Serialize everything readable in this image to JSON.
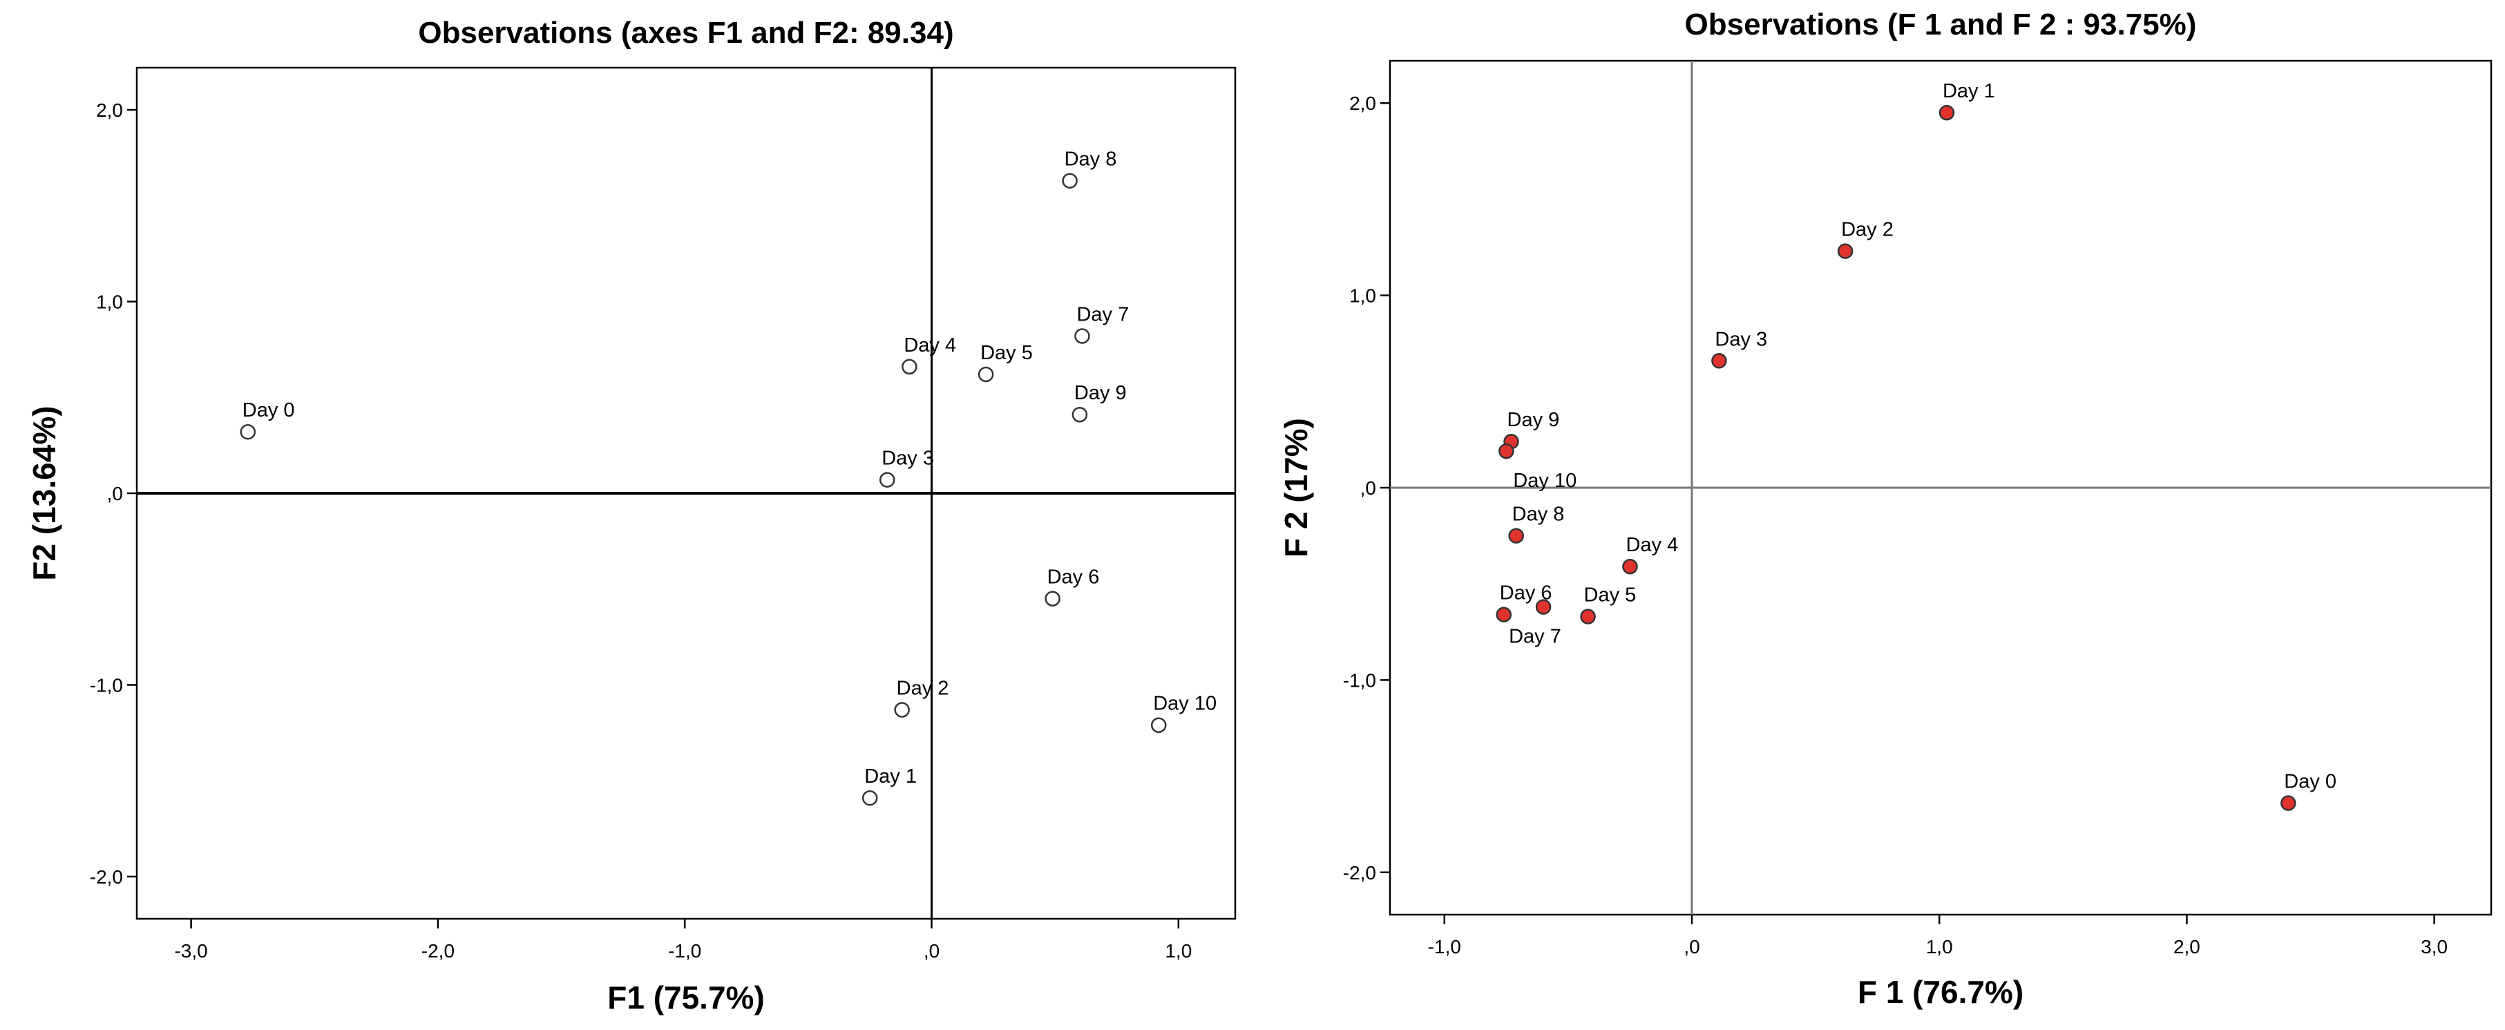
{
  "chart_data": [
    {
      "type": "scatter",
      "title": "Observations (axes F1 and F2: 89.34)",
      "xlabel": "F1 (75.7%)",
      "ylabel": "F2 (13.64%)",
      "xlim": [
        -3.22,
        1.23
      ],
      "ylim": [
        -2.22,
        2.22
      ],
      "xticks": [
        {
          "value": -3,
          "label": "-3,0"
        },
        {
          "value": -2,
          "label": "-2,0"
        },
        {
          "value": -1,
          "label": "-1,0"
        },
        {
          "value": 0,
          "label": ",0"
        },
        {
          "value": 1,
          "label": "1,0"
        }
      ],
      "yticks": [
        {
          "value": 2,
          "label": "2,0"
        },
        {
          "value": 1,
          "label": "1,0"
        },
        {
          "value": 0,
          "label": ",0"
        },
        {
          "value": -1,
          "label": "-1,0"
        },
        {
          "value": -2,
          "label": "-2,0"
        }
      ],
      "marker_fill": "#ffffff",
      "marker_stroke": "#333333",
      "refline_color": "#000000",
      "grid": false,
      "points": [
        {
          "label": "Day 0",
          "x": -2.77,
          "y": 0.32
        },
        {
          "label": "Day 1",
          "x": -0.25,
          "y": -1.59
        },
        {
          "label": "Day 2",
          "x": -0.12,
          "y": -1.13
        },
        {
          "label": "Day 3",
          "x": -0.18,
          "y": 0.07
        },
        {
          "label": "Day 4",
          "x": -0.09,
          "y": 0.66
        },
        {
          "label": "Day 5",
          "x": 0.22,
          "y": 0.62
        },
        {
          "label": "Day 6",
          "x": 0.49,
          "y": -0.55
        },
        {
          "label": "Day 7",
          "x": 0.61,
          "y": 0.82
        },
        {
          "label": "Day 8",
          "x": 0.56,
          "y": 1.63
        },
        {
          "label": "Day 9",
          "x": 0.6,
          "y": 0.41
        },
        {
          "label": "Day 10",
          "x": 0.92,
          "y": -1.21
        }
      ]
    },
    {
      "type": "scatter",
      "title": "Observations (F 1 and F 2 : 93.75%)",
      "xlabel": "F 1 (76.7%)",
      "ylabel": "F 2 (17%)",
      "xlim": [
        -1.22,
        3.23
      ],
      "ylim": [
        -2.22,
        2.22
      ],
      "xticks": [
        {
          "value": -1,
          "label": "-1,0"
        },
        {
          "value": 0,
          "label": ",0"
        },
        {
          "value": 1,
          "label": "1,0"
        },
        {
          "value": 2,
          "label": "2,0"
        },
        {
          "value": 3,
          "label": "3,0"
        }
      ],
      "yticks": [
        {
          "value": 2,
          "label": "2,0"
        },
        {
          "value": 1,
          "label": "1,0"
        },
        {
          "value": 0,
          "label": ",0"
        },
        {
          "value": -1,
          "label": "-1,0"
        },
        {
          "value": -2,
          "label": "-2,0"
        }
      ],
      "marker_fill": "#e0332e",
      "marker_stroke": "#333333",
      "refline_color": "#777777",
      "grid": false,
      "points": [
        {
          "label": "Day 0",
          "x": 2.41,
          "y": -1.64
        },
        {
          "label": "Day 1",
          "x": 1.03,
          "y": 1.95
        },
        {
          "label": "Day 2",
          "x": 0.62,
          "y": 1.23
        },
        {
          "label": "Day 3",
          "x": 0.11,
          "y": 0.66
        },
        {
          "label": "Day 4",
          "x": -0.25,
          "y": -0.41
        },
        {
          "label": "Day 5",
          "x": -0.42,
          "y": -0.67
        },
        {
          "label": "Day 6",
          "x": -0.76,
          "y": -0.66
        },
        {
          "label": "Day 7",
          "x": -0.6,
          "y": -0.62
        },
        {
          "label": "Day 8",
          "x": -0.71,
          "y": -0.25
        },
        {
          "label": "Day 9",
          "x": -0.73,
          "y": 0.24
        },
        {
          "label": "Day 10",
          "x": -0.75,
          "y": 0.19
        }
      ]
    }
  ]
}
